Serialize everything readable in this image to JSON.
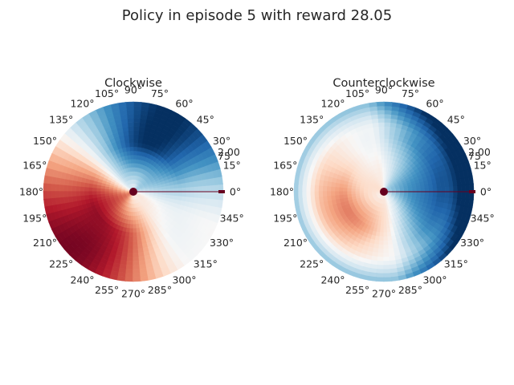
{
  "title": "Policy in episode 5 with reward 28.05",
  "colormap": "RdBu",
  "marker_color": "#67001f",
  "chart_data": [
    {
      "type": "heatmap",
      "projection": "polar",
      "title": "Clockwise",
      "theta_ticks_deg": [
        0,
        15,
        30,
        45,
        60,
        75,
        90,
        105,
        120,
        135,
        150,
        165,
        180,
        195,
        210,
        225,
        240,
        255,
        270,
        285,
        300,
        315,
        330,
        345
      ],
      "theta_tick_labels": [
        "0°",
        "15°",
        "30°",
        "45°",
        "60°",
        "75°",
        "90°",
        "105°",
        "120°",
        "135°",
        "150°",
        "165°",
        "180°",
        "195°",
        "210°",
        "225°",
        "240°",
        "255°",
        "270°",
        "285°",
        "300°",
        "315°",
        "330°",
        "345°"
      ],
      "r_tick_labels": [
        "2.00",
        "75"
      ],
      "rlim": [
        0,
        2
      ],
      "pattern": "red dominant in the lower-left half (max near 225°), blue in the upper-right (max near 60°–75°), near-neutral toward 300°–0°"
    },
    {
      "type": "heatmap",
      "projection": "polar",
      "title": "Counterclockwise",
      "theta_ticks_deg": [
        0,
        15,
        30,
        45,
        60,
        75,
        90,
        105,
        120,
        135,
        150,
        165,
        180,
        195,
        210,
        225,
        240,
        255,
        270,
        285,
        300,
        315,
        330,
        345
      ],
      "theta_tick_labels": [
        "0°",
        "15°",
        "30°",
        "45°",
        "60°",
        "75°",
        "90°",
        "105°",
        "120°",
        "135°",
        "150°",
        "165°",
        "180°",
        "195°",
        "210°",
        "225°",
        "240°",
        "255°",
        "270°",
        "285°",
        "300°",
        "315°",
        "330°",
        "345°"
      ],
      "r_tick_labels": [
        "2.00",
        "75"
      ],
      "rlim": [
        0,
        2
      ],
      "pattern": "blue dominant on the right and the outer rim (max near 0°–30°), light red in the inner left (max near 200°)"
    }
  ]
}
